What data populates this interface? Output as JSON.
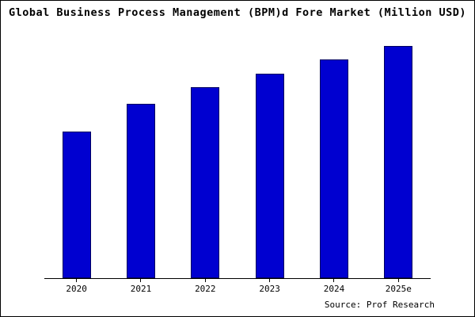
{
  "chart_data": {
    "type": "bar",
    "title": "Global Business Process Management (BPM)d Fore Market (Million USD)",
    "categories": [
      "2020",
      "2021",
      "2022",
      "2023",
      "2024",
      "2025e"
    ],
    "values": [
      63,
      75,
      82,
      88,
      94,
      100
    ],
    "xlabel": "",
    "ylabel": "",
    "ylim": [
      0,
      105
    ],
    "grid": false,
    "legend": "none"
  },
  "source": "Source: Prof Research",
  "colors": {
    "bar_fill": "#0000d0",
    "bar_border": "#000060",
    "axis": "#000000",
    "background": "#ffffff"
  }
}
